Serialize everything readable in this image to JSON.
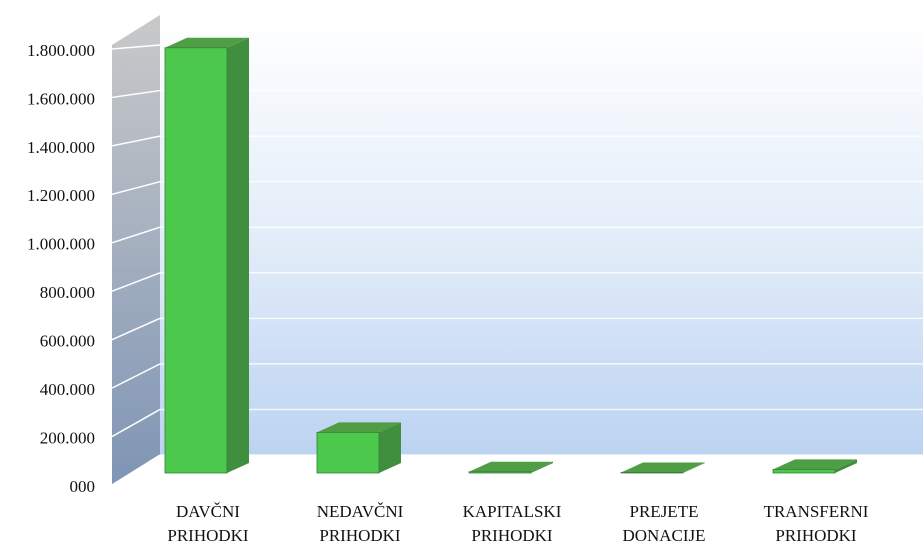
{
  "chart_data": {
    "type": "bar3d",
    "categories": [
      [
        "DAVČNI",
        "PRIHODKI"
      ],
      [
        "NEDAVČNI",
        "PRIHODKI"
      ],
      [
        "KAPITALSKI",
        "PRIHODKI"
      ],
      [
        "PREJETE",
        "DONACIJE"
      ],
      [
        "TRANSFERNI",
        "PRIHODKI"
      ]
    ],
    "values": [
      1780000,
      170000,
      5000,
      2000,
      15000
    ],
    "color": "#4cc94c",
    "ylim": [
      0,
      1800000
    ],
    "yticks": [
      {
        "value": 0,
        "label": "000"
      },
      {
        "value": 200000,
        "label": "200.000"
      },
      {
        "value": 400000,
        "label": "400.000"
      },
      {
        "value": 600000,
        "label": "600.000"
      },
      {
        "value": 800000,
        "label": "800.000"
      },
      {
        "value": 1000000,
        "label": "1.000.000"
      },
      {
        "value": 1200000,
        "label": "1.200.000"
      },
      {
        "value": 1400000,
        "label": "1.400.000"
      },
      {
        "value": 1600000,
        "label": "1.600.000"
      },
      {
        "value": 1800000,
        "label": "1.800.000"
      }
    ],
    "grid": true
  }
}
